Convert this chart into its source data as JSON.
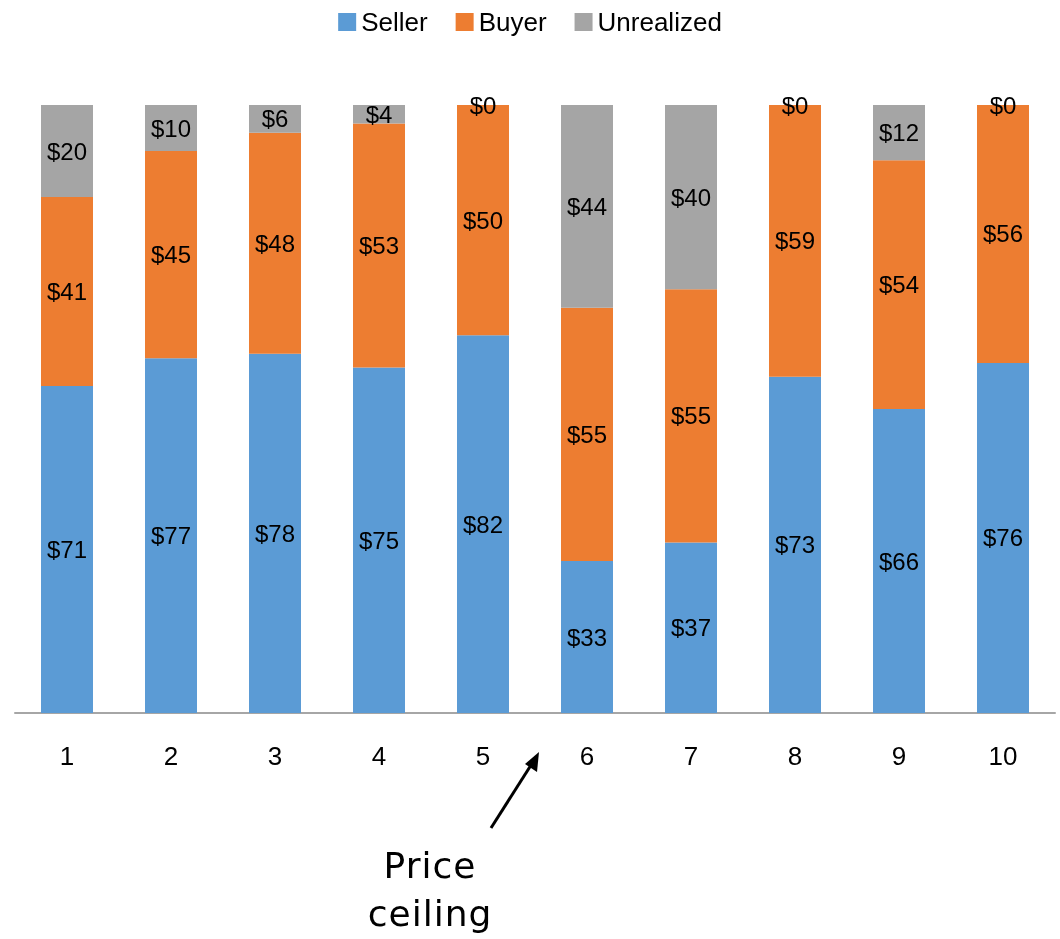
{
  "chart_data": {
    "type": "bar",
    "stacked": true,
    "legend": "top",
    "tick_labels": "x",
    "categories": [
      "1",
      "2",
      "3",
      "4",
      "5",
      "6",
      "7",
      "8",
      "9",
      "10"
    ],
    "series": [
      {
        "name": "Seller",
        "color": "#5b9bd5",
        "values": [
          71,
          77,
          78,
          75,
          82,
          33,
          37,
          73,
          66,
          76
        ],
        "value_labels": [
          "$71",
          "$77",
          "$78",
          "$75",
          "$82",
          "$33",
          "$37",
          "$73",
          "$66",
          "$76"
        ]
      },
      {
        "name": "Buyer",
        "color": "#ed7d31",
        "values": [
          41,
          45,
          48,
          53,
          50,
          55,
          55,
          59,
          54,
          56
        ],
        "value_labels": [
          "$41",
          "$45",
          "$48",
          "$53",
          "$50",
          "$55",
          "$55",
          "$59",
          "$54",
          "$56"
        ]
      },
      {
        "name": "Unrealized",
        "color": "#a5a5a5",
        "values": [
          20,
          10,
          6,
          4,
          0,
          44,
          40,
          0,
          12,
          0
        ],
        "value_labels": [
          "$20",
          "$10",
          "$6",
          "$4",
          "$0",
          "$44",
          "$40",
          "$0",
          "$12",
          "$0"
        ]
      }
    ],
    "annotations": [
      "Price ceiling"
    ]
  }
}
